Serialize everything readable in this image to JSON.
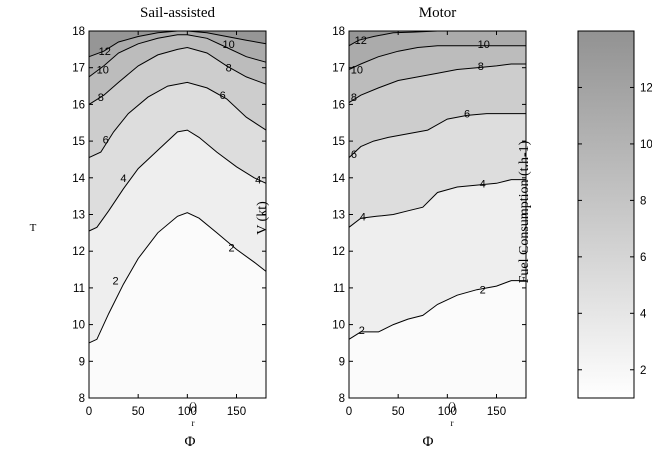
{
  "chart_data": [
    {
      "type": "contour",
      "title": "Sail-assisted",
      "xlabel": "Φ",
      "xlabel_sub": "r",
      "ylabel": "T",
      "xlim": [
        0,
        180
      ],
      "ylim": [
        8,
        18
      ],
      "xticks": [
        0,
        50,
        100,
        150
      ],
      "yticks": [
        8,
        9,
        10,
        11,
        12,
        13,
        14,
        15,
        16,
        17,
        18
      ],
      "contour_levels": [
        2,
        4,
        6,
        8,
        10,
        12
      ],
      "contours": [
        {
          "level": 2,
          "points": [
            [
              0,
              9.5
            ],
            [
              8,
              9.6
            ],
            [
              20,
              10.3
            ],
            [
              35,
              11.1
            ],
            [
              50,
              11.8
            ],
            [
              70,
              12.5
            ],
            [
              90,
              12.95
            ],
            [
              100,
              13.05
            ],
            [
              112,
              12.9
            ],
            [
              130,
              12.5
            ],
            [
              150,
              12.05
            ],
            [
              168,
              11.7
            ],
            [
              180,
              11.45
            ]
          ]
        },
        {
          "level": 4,
          "points": [
            [
              0,
              12.55
            ],
            [
              8,
              12.65
            ],
            [
              20,
              13.1
            ],
            [
              35,
              13.7
            ],
            [
              50,
              14.25
            ],
            [
              70,
              14.75
            ],
            [
              90,
              15.25
            ],
            [
              100,
              15.3
            ],
            [
              112,
              15.1
            ],
            [
              130,
              14.7
            ],
            [
              150,
              14.3
            ],
            [
              168,
              14.0
            ],
            [
              180,
              13.85
            ]
          ]
        },
        {
          "level": 6,
          "points": [
            [
              0,
              14.55
            ],
            [
              12,
              14.7
            ],
            [
              25,
              15.25
            ],
            [
              40,
              15.75
            ],
            [
              60,
              16.2
            ],
            [
              80,
              16.5
            ],
            [
              100,
              16.6
            ],
            [
              120,
              16.45
            ],
            [
              140,
              16.15
            ],
            [
              160,
              15.65
            ],
            [
              180,
              15.3
            ]
          ]
        },
        {
          "level": 8,
          "points": [
            [
              0,
              16.0
            ],
            [
              15,
              16.25
            ],
            [
              30,
              16.6
            ],
            [
              50,
              17.05
            ],
            [
              70,
              17.35
            ],
            [
              90,
              17.5
            ],
            [
              100,
              17.55
            ],
            [
              120,
              17.4
            ],
            [
              140,
              17.05
            ],
            [
              160,
              16.75
            ],
            [
              180,
              16.55
            ]
          ]
        },
        {
          "level": 10,
          "points": [
            [
              0,
              16.75
            ],
            [
              15,
              17.05
            ],
            [
              30,
              17.4
            ],
            [
              50,
              17.65
            ],
            [
              70,
              17.8
            ],
            [
              90,
              17.9
            ],
            [
              100,
              17.9
            ],
            [
              120,
              17.8
            ],
            [
              140,
              17.55
            ],
            [
              160,
              17.3
            ],
            [
              180,
              17.15
            ]
          ]
        },
        {
          "level": 12,
          "points": [
            [
              0,
              17.3
            ],
            [
              15,
              17.45
            ],
            [
              30,
              17.7
            ],
            [
              50,
              17.85
            ],
            [
              70,
              17.95
            ],
            [
              90,
              18.0
            ],
            [
              100,
              18.0
            ],
            [
              120,
              17.95
            ],
            [
              140,
              17.85
            ],
            [
              160,
              17.75
            ],
            [
              180,
              17.65
            ]
          ]
        }
      ],
      "contour_labels": [
        {
          "text": "2",
          "x": 27,
          "y": 11.2
        },
        {
          "text": "2",
          "x": 145,
          "y": 12.1
        },
        {
          "text": "4",
          "x": 35,
          "y": 14.0
        },
        {
          "text": "4",
          "x": 172,
          "y": 13.95
        },
        {
          "text": "6",
          "x": 17,
          "y": 15.05
        },
        {
          "text": "6",
          "x": 136,
          "y": 16.25
        },
        {
          "text": "8",
          "x": 12,
          "y": 16.2
        },
        {
          "text": "8",
          "x": 142,
          "y": 17.0
        },
        {
          "text": "10",
          "x": 14,
          "y": 16.95
        },
        {
          "text": "10",
          "x": 142,
          "y": 17.65
        },
        {
          "text": "12",
          "x": 16,
          "y": 17.45
        }
      ],
      "colormap": "gray",
      "grid": false
    },
    {
      "type": "contour",
      "title": "Motor",
      "xlabel": "Φ",
      "xlabel_sub": "r",
      "xlim": [
        0,
        180
      ],
      "ylim": [
        8,
        18
      ],
      "xticks": [
        0,
        50,
        100,
        150
      ],
      "yticks": [
        8,
        9,
        10,
        11,
        12,
        13,
        14,
        15,
        16,
        17,
        18
      ],
      "contour_levels": [
        2,
        4,
        6,
        8,
        10,
        12
      ],
      "contours": [
        {
          "level": 2,
          "points": [
            [
              0,
              9.6
            ],
            [
              12,
              9.8
            ],
            [
              30,
              9.8
            ],
            [
              45,
              10.0
            ],
            [
              60,
              10.15
            ],
            [
              75,
              10.25
            ],
            [
              90,
              10.55
            ],
            [
              110,
              10.8
            ],
            [
              130,
              10.95
            ],
            [
              150,
              11.05
            ],
            [
              165,
              11.2
            ],
            [
              180,
              11.2
            ]
          ]
        },
        {
          "level": 4,
          "points": [
            [
              0,
              12.65
            ],
            [
              12,
              12.9
            ],
            [
              28,
              12.95
            ],
            [
              45,
              13.0
            ],
            [
              60,
              13.1
            ],
            [
              75,
              13.2
            ],
            [
              90,
              13.6
            ],
            [
              110,
              13.75
            ],
            [
              130,
              13.8
            ],
            [
              150,
              13.85
            ],
            [
              165,
              13.95
            ],
            [
              180,
              13.95
            ]
          ]
        },
        {
          "level": 6,
          "points": [
            [
              0,
              14.55
            ],
            [
              12,
              14.85
            ],
            [
              25,
              15.0
            ],
            [
              40,
              15.1
            ],
            [
              60,
              15.2
            ],
            [
              80,
              15.3
            ],
            [
              100,
              15.6
            ],
            [
              120,
              15.7
            ],
            [
              140,
              15.75
            ],
            [
              160,
              15.75
            ],
            [
              180,
              15.75
            ]
          ]
        },
        {
          "level": 8,
          "points": [
            [
              0,
              16.05
            ],
            [
              12,
              16.25
            ],
            [
              30,
              16.45
            ],
            [
              50,
              16.65
            ],
            [
              70,
              16.75
            ],
            [
              90,
              16.85
            ],
            [
              110,
              16.95
            ],
            [
              130,
              17.0
            ],
            [
              150,
              17.05
            ],
            [
              165,
              17.1
            ],
            [
              180,
              17.1
            ]
          ]
        },
        {
          "level": 10,
          "points": [
            [
              0,
              16.95
            ],
            [
              12,
              17.1
            ],
            [
              30,
              17.3
            ],
            [
              50,
              17.45
            ],
            [
              70,
              17.55
            ],
            [
              90,
              17.6
            ],
            [
              110,
              17.6
            ],
            [
              130,
              17.6
            ],
            [
              150,
              17.6
            ],
            [
              180,
              17.6
            ]
          ]
        },
        {
          "level": 12,
          "points": [
            [
              0,
              17.6
            ],
            [
              10,
              17.75
            ],
            [
              25,
              17.85
            ],
            [
              45,
              17.95
            ],
            [
              65,
              17.97
            ],
            [
              90,
              18.0
            ],
            [
              120,
              18.0
            ],
            [
              150,
              18.0
            ],
            [
              180,
              18.0
            ]
          ]
        }
      ],
      "contour_labels": [
        {
          "text": "2",
          "x": 13,
          "y": 9.85
        },
        {
          "text": "2",
          "x": 136,
          "y": 10.95
        },
        {
          "text": "4",
          "x": 14,
          "y": 12.95
        },
        {
          "text": "4",
          "x": 136,
          "y": 13.85
        },
        {
          "text": "6",
          "x": 5,
          "y": 14.65
        },
        {
          "text": "6",
          "x": 120,
          "y": 15.75
        },
        {
          "text": "8",
          "x": 5,
          "y": 16.2
        },
        {
          "text": "8",
          "x": 134,
          "y": 17.05
        },
        {
          "text": "10",
          "x": 8,
          "y": 16.95
        },
        {
          "text": "10",
          "x": 137,
          "y": 17.65
        },
        {
          "text": "12",
          "x": 12,
          "y": 17.75
        }
      ],
      "colormap": "gray",
      "grid": false
    }
  ],
  "axis_text": {
    "left_ylabel": "T",
    "left_xlabel": "Φ",
    "left_xsub": "r",
    "left_xmark": "()",
    "right_xlabel": "Φ",
    "right_xsub": "r",
    "right_xmark": "()",
    "middle_ylabel": "V (kt)"
  },
  "colorbar": {
    "label": "Fuel Consumption (t.h-1)",
    "range": [
      1,
      14
    ],
    "ticks": [
      2,
      4,
      6,
      8,
      10,
      12
    ]
  }
}
